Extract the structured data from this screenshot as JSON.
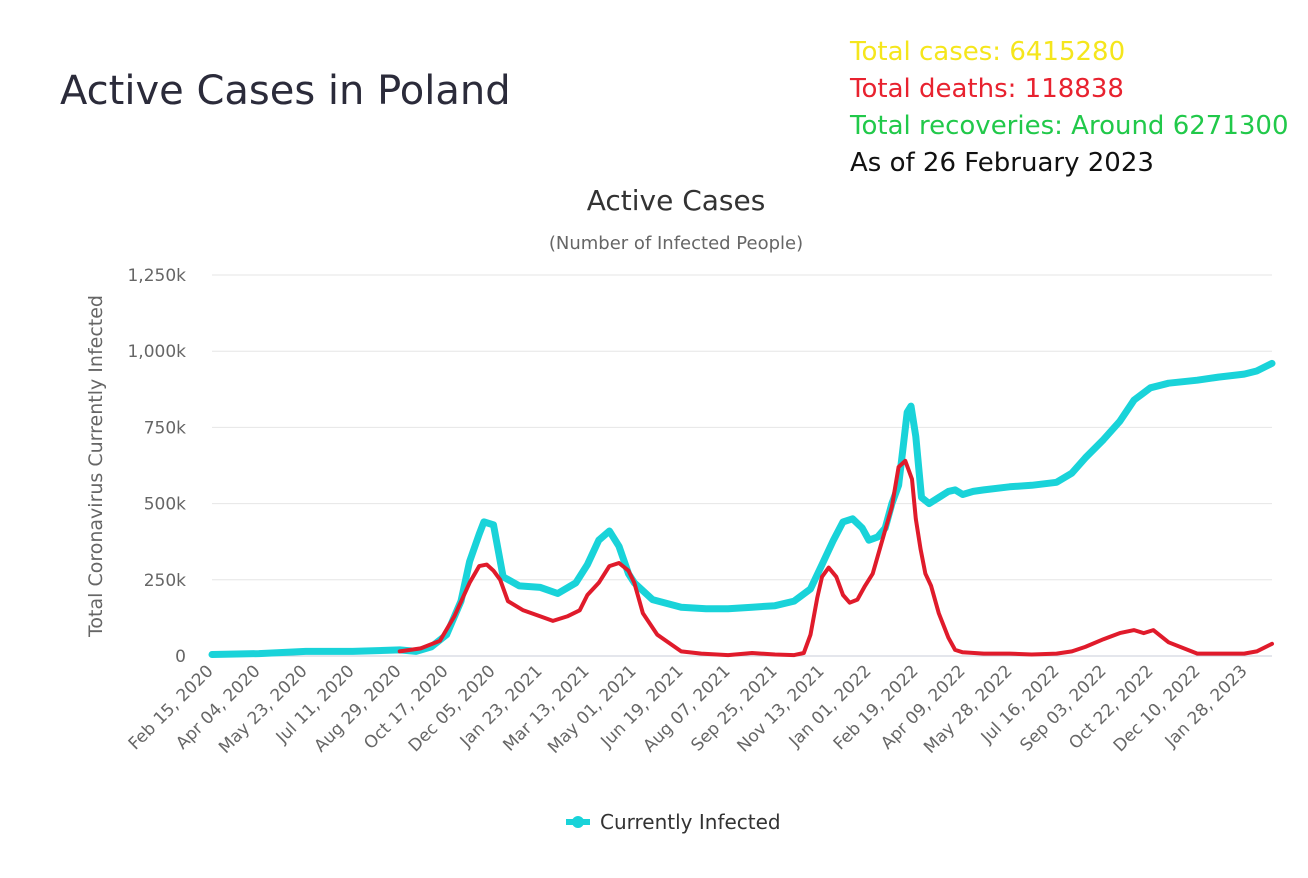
{
  "page_title": "Active Cases in Poland",
  "stats": {
    "total_cases": "Total cases: 6415280",
    "total_deaths": "Total deaths: 118838",
    "total_recoveries": "Total recoveries: Around 6271300",
    "as_of": "As of 26 February 2023"
  },
  "colors": {
    "cases": "#f5e61c",
    "deaths": "#e8222f",
    "recoveries": "#21c94a",
    "as_of": "#111111",
    "series": "#19d3d9",
    "overlay": "#e01b2b",
    "grid": "#e6e6e6"
  },
  "chart_data": {
    "type": "line",
    "title": "Active Cases",
    "subtitle": "(Number of Infected People)",
    "ylabel": "Total Coronavirus Currently Infected",
    "xlabel": "",
    "ylim": [
      0,
      1250000
    ],
    "yticks": [
      0,
      250000,
      500000,
      750000,
      1000000,
      1250000
    ],
    "ytick_labels": [
      "0",
      "250k",
      "500k",
      "750k",
      "1,000k",
      "1,250k"
    ],
    "x_labels": [
      "Feb 15, 2020",
      "Apr 04, 2020",
      "May 23, 2020",
      "Jul 11, 2020",
      "Aug 29, 2020",
      "Oct 17, 2020",
      "Dec 05, 2020",
      "Jan 23, 2021",
      "Mar 13, 2021",
      "May 01, 2021",
      "Jun 19, 2021",
      "Aug 07, 2021",
      "Sep 25, 2021",
      "Nov 13, 2021",
      "Jan 01, 2022",
      "Feb 19, 2022",
      "Apr 09, 2022",
      "May 28, 2022",
      "Jul 16, 2022",
      "Sep 03, 2022",
      "Oct 22, 2022",
      "Dec 10, 2022",
      "Jan 28, 2023"
    ],
    "grid": true,
    "legend_position": "bottom-center",
    "series": [
      {
        "name": "Currently Infected",
        "x": [
          "2020-02-15",
          "2020-04-04",
          "2020-05-23",
          "2020-07-11",
          "2020-08-29",
          "2020-09-15",
          "2020-10-01",
          "2020-10-17",
          "2020-11-01",
          "2020-11-10",
          "2020-11-20",
          "2020-11-25",
          "2020-12-05",
          "2020-12-15",
          "2021-01-01",
          "2021-01-23",
          "2021-02-10",
          "2021-03-01",
          "2021-03-13",
          "2021-03-25",
          "2021-04-05",
          "2021-04-15",
          "2021-04-25",
          "2021-05-01",
          "2021-05-20",
          "2021-06-19",
          "2021-07-15",
          "2021-08-07",
          "2021-09-01",
          "2021-09-25",
          "2021-10-15",
          "2021-11-01",
          "2021-11-13",
          "2021-11-25",
          "2021-12-05",
          "2021-12-15",
          "2021-12-25",
          "2022-01-01",
          "2022-01-10",
          "2022-01-18",
          "2022-01-25",
          "2022-02-01",
          "2022-02-06",
          "2022-02-10",
          "2022-02-14",
          "2022-02-19",
          "2022-02-25",
          "2022-03-05",
          "2022-03-15",
          "2022-03-25",
          "2022-04-01",
          "2022-04-09",
          "2022-04-20",
          "2022-05-01",
          "2022-05-28",
          "2022-06-20",
          "2022-07-16",
          "2022-08-01",
          "2022-08-15",
          "2022-09-03",
          "2022-09-20",
          "2022-10-05",
          "2022-10-22",
          "2022-11-10",
          "2022-12-10",
          "2023-01-01",
          "2023-01-28",
          "2023-02-10",
          "2023-02-26"
        ],
        "values": [
          5000,
          8000,
          15000,
          15000,
          20000,
          15000,
          30000,
          70000,
          180000,
          310000,
          400000,
          440000,
          430000,
          260000,
          230000,
          225000,
          205000,
          240000,
          300000,
          380000,
          410000,
          360000,
          270000,
          240000,
          185000,
          160000,
          155000,
          155000,
          160000,
          165000,
          180000,
          220000,
          300000,
          380000,
          440000,
          450000,
          420000,
          380000,
          390000,
          420000,
          500000,
          560000,
          690000,
          800000,
          820000,
          720000,
          520000,
          500000,
          520000,
          540000,
          545000,
          530000,
          540000,
          545000,
          555000,
          560000,
          570000,
          600000,
          650000,
          710000,
          770000,
          840000,
          880000,
          895000,
          905000,
          915000,
          925000,
          935000,
          960000
        ]
      },
      {
        "x": [
          "2020-08-29",
          "2020-09-20",
          "2020-10-10",
          "2020-10-25",
          "2020-11-10",
          "2020-11-20",
          "2020-11-28",
          "2020-12-05",
          "2020-12-12",
          "2020-12-20",
          "2021-01-05",
          "2021-01-23",
          "2021-02-05",
          "2021-02-20",
          "2021-03-05",
          "2021-03-13",
          "2021-03-25",
          "2021-04-05",
          "2021-04-15",
          "2021-04-25",
          "2021-05-01",
          "2021-05-10",
          "2021-05-25",
          "2021-06-19",
          "2021-07-10",
          "2021-08-07",
          "2021-09-01",
          "2021-09-25",
          "2021-10-15",
          "2021-10-25",
          "2021-11-01",
          "2021-11-08",
          "2021-11-13",
          "2021-11-20",
          "2021-11-28",
          "2021-12-05",
          "2021-12-12",
          "2021-12-20",
          "2021-12-28",
          "2022-01-05",
          "2022-01-15",
          "2022-01-25",
          "2022-02-01",
          "2022-02-08",
          "2022-02-15",
          "2022-02-19",
          "2022-02-24",
          "2022-03-01",
          "2022-03-07",
          "2022-03-15",
          "2022-03-25",
          "2022-04-01",
          "2022-04-09",
          "2022-05-01",
          "2022-05-28",
          "2022-06-20",
          "2022-07-16",
          "2022-08-01",
          "2022-08-15",
          "2022-09-03",
          "2022-09-20",
          "2022-10-05",
          "2022-10-15",
          "2022-10-25",
          "2022-11-10",
          "2022-12-10",
          "2023-01-01",
          "2023-01-28",
          "2023-02-10",
          "2023-02-26"
        ],
        "values": [
          15000,
          25000,
          50000,
          130000,
          240000,
          295000,
          300000,
          280000,
          250000,
          180000,
          150000,
          130000,
          115000,
          130000,
          150000,
          200000,
          240000,
          295000,
          305000,
          280000,
          240000,
          140000,
          70000,
          15000,
          8000,
          3000,
          10000,
          5000,
          3000,
          10000,
          70000,
          190000,
          260000,
          290000,
          260000,
          200000,
          175000,
          185000,
          230000,
          270000,
          380000,
          490000,
          620000,
          640000,
          580000,
          450000,
          350000,
          270000,
          230000,
          140000,
          60000,
          20000,
          12000,
          8000,
          8000,
          5000,
          8000,
          15000,
          30000,
          55000,
          75000,
          85000,
          75000,
          85000,
          45000,
          8000,
          8000,
          8000,
          15000,
          40000
        ]
      }
    ]
  },
  "legend": {
    "label": "Currently Infected"
  }
}
